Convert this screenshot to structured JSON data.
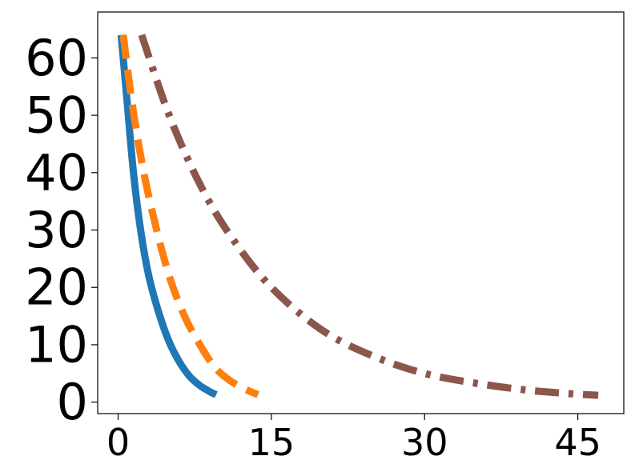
{
  "chart_data": {
    "type": "line",
    "title": "",
    "xlabel": "",
    "ylabel": "",
    "xlim": [
      -2,
      49.5
    ],
    "ylim": [
      -2,
      68
    ],
    "xticks": [
      0,
      15,
      30,
      45
    ],
    "xtick_labels": [
      "0",
      "15",
      "30",
      "45"
    ],
    "yticks": [
      0,
      10,
      20,
      30,
      40,
      50,
      60
    ],
    "ytick_labels": [
      "0",
      "10",
      "20",
      "30",
      "40",
      "50",
      "60"
    ],
    "grid": false,
    "legend": "none",
    "series": [
      {
        "style": "solid",
        "color": "#1f77b4",
        "x": [
          0.3,
          0.9,
          1.5,
          2.2,
          3.0,
          4.0,
          5.0,
          6.0,
          7.0,
          8.0,
          9.0,
          9.6
        ],
        "y": [
          64,
          52,
          40,
          30,
          22,
          15.5,
          10.5,
          7,
          4.5,
          2.9,
          1.8,
          1.3
        ]
      },
      {
        "style": "dashed",
        "color": "#ff7f0e",
        "x": [
          0.5,
          1.3,
          2.3,
          3.5,
          5.0,
          6.5,
          8.0,
          9.5,
          11.0,
          12.5,
          13.7
        ],
        "y": [
          64,
          53,
          42,
          32,
          22,
          15,
          10,
          6,
          3.7,
          2.2,
          1.3
        ]
      },
      {
        "style": "dashdot",
        "color": "#8c564b",
        "x": [
          2.3,
          5.0,
          8.0,
          11.0,
          15.0,
          20.0,
          25.0,
          30.0,
          35.0,
          40.0,
          44.0,
          47.0
        ],
        "y": [
          64,
          50,
          38,
          29,
          20,
          12.5,
          8,
          5,
          3.3,
          2.1,
          1.5,
          1.2
        ]
      }
    ]
  }
}
